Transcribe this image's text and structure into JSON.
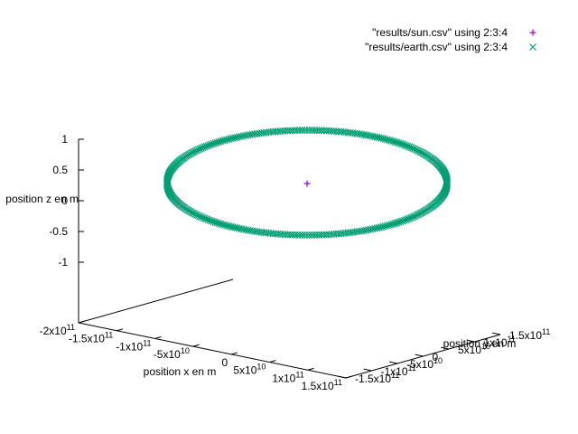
{
  "chart_data": {
    "type": "scatter",
    "dimensions": 3,
    "title": "",
    "xlabel": "position x en m",
    "ylabel": "position y en m",
    "zlabel": "position z en m",
    "xlim": [
      -200000000000,
      150000000000
    ],
    "ylim": [
      -150000000000,
      150000000000
    ],
    "zlim": [
      -1,
      1
    ],
    "grid": false,
    "legend_position": "top-right",
    "x_ticks": [
      {
        "value": -200000000000,
        "label": "-2x10",
        "exp": "11"
      },
      {
        "value": -150000000000,
        "label": "-1.5x10",
        "exp": "11"
      },
      {
        "value": -100000000000,
        "label": "-1x10",
        "exp": "11"
      },
      {
        "value": -50000000000,
        "label": "-5x10",
        "exp": "10"
      },
      {
        "value": 0,
        "label": "0",
        "exp": ""
      },
      {
        "value": 50000000000,
        "label": "5x10",
        "exp": "10"
      },
      {
        "value": 100000000000,
        "label": "1x10",
        "exp": "11"
      },
      {
        "value": 150000000000,
        "label": "1.5x10",
        "exp": "11"
      }
    ],
    "y_ticks": [
      {
        "value": -150000000000,
        "label": "-1.5x10",
        "exp": "11"
      },
      {
        "value": -100000000000,
        "label": "-1x10",
        "exp": "11"
      },
      {
        "value": -50000000000,
        "label": "-5x10",
        "exp": "10"
      },
      {
        "value": 0,
        "label": "0",
        "exp": ""
      },
      {
        "value": 50000000000,
        "label": "5x10",
        "exp": "10"
      },
      {
        "value": 100000000000,
        "label": "1x10",
        "exp": "11"
      },
      {
        "value": 150000000000,
        "label": "1.5x10",
        "exp": "11"
      }
    ],
    "z_ticks": [
      {
        "value": 1,
        "label": "1"
      },
      {
        "value": 0.5,
        "label": "0.5"
      },
      {
        "value": 0,
        "label": "0"
      },
      {
        "value": -0.5,
        "label": "-0.5"
      },
      {
        "value": -1,
        "label": "-1"
      }
    ],
    "series": [
      {
        "name": "\"results/sun.csv\" using 2:3:4",
        "marker": "plus",
        "color": "#9400d3",
        "points": [
          [
            0,
            0,
            0
          ]
        ]
      },
      {
        "name": "\"results/earth.csv\" using 2:3:4",
        "marker": "cross",
        "color": "#009e73",
        "orbit": {
          "center": [
            0,
            0,
            0
          ],
          "radius": 150000000000,
          "samples": 360
        }
      }
    ]
  }
}
